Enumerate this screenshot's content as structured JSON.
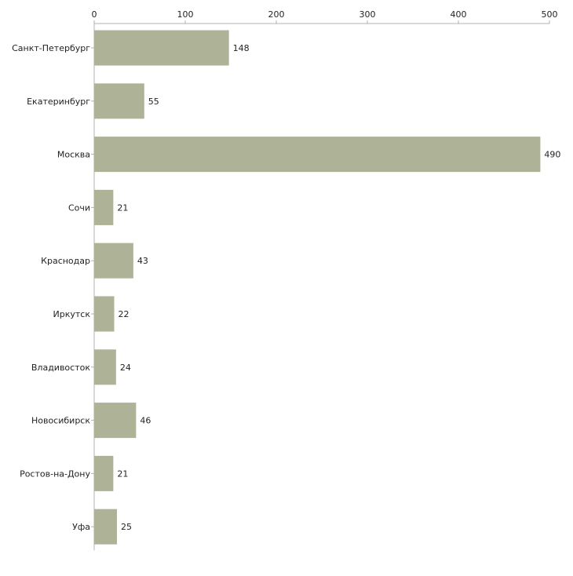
{
  "chart_data": {
    "type": "bar",
    "orientation": "horizontal",
    "categories": [
      "Санкт-Петербург",
      "Екатеринбург",
      "Москва",
      "Сочи",
      "Краснодар",
      "Иркутск",
      "Владивосток",
      "Новосибирск",
      "Ростов-на-Дону",
      "Уфа"
    ],
    "values": [
      148,
      55,
      490,
      21,
      43,
      22,
      24,
      46,
      21,
      25
    ],
    "data_labels": [
      "148",
      "55",
      "490",
      "21",
      "43",
      "22",
      "24",
      "46",
      "21",
      "25"
    ],
    "x_ticks": [
      0,
      100,
      200,
      300,
      400,
      500
    ],
    "x_tick_labels": [
      "0",
      "100",
      "200",
      "300",
      "400",
      "500"
    ],
    "xlim": [
      0,
      500
    ],
    "axis_position": "top",
    "grid": false,
    "legend": "none",
    "title": "",
    "xlabel": "",
    "ylabel": "",
    "colors": {
      "bar": "#aeb398",
      "axis": "#b0b0b0",
      "text": "#222222"
    }
  }
}
